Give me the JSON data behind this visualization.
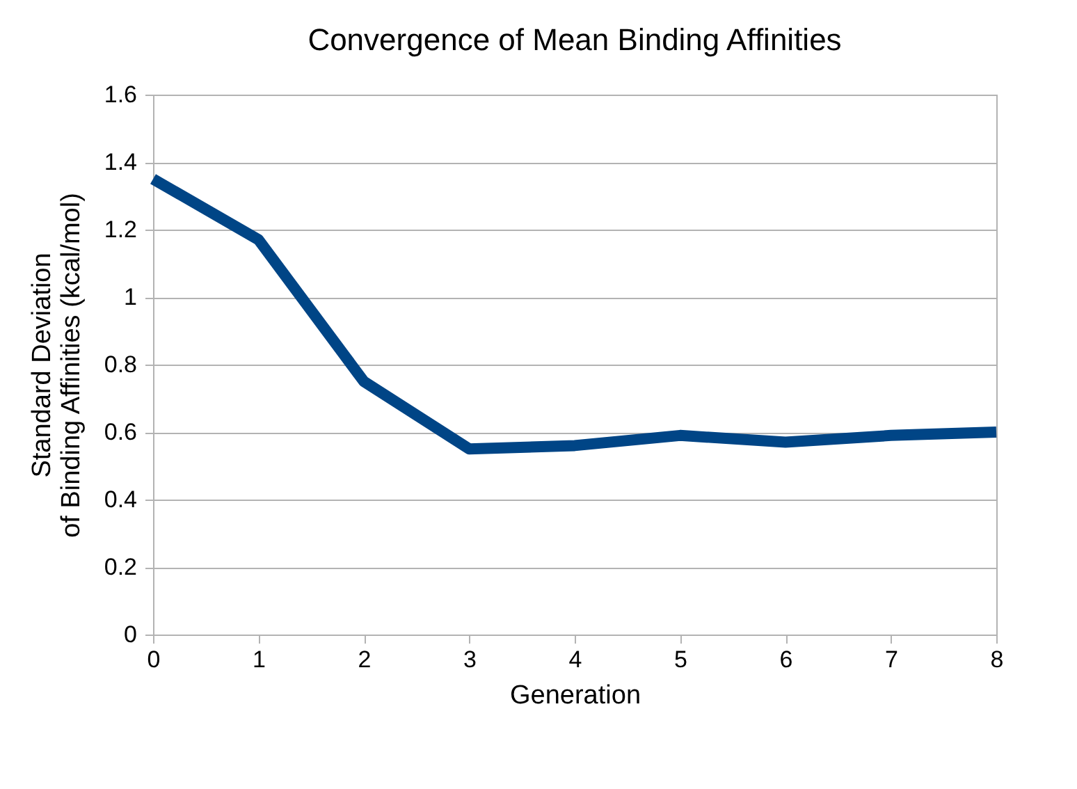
{
  "chart_data": {
    "type": "line",
    "title": "Convergence of Mean Binding Affinities",
    "xlabel": "Generation",
    "ylabel": "Standard Deviation\nof Binding Affinities (kcal/mol)",
    "x": [
      0,
      1,
      2,
      3,
      4,
      5,
      6,
      7,
      8
    ],
    "series": [
      {
        "color": "#004586",
        "values": [
          1.35,
          1.17,
          0.75,
          0.55,
          0.56,
          0.59,
          0.57,
          0.59,
          0.6
        ]
      }
    ],
    "xlim": [
      0,
      8
    ],
    "xticks": [
      0,
      1,
      2,
      3,
      4,
      5,
      6,
      7,
      8
    ],
    "ylim": [
      0,
      1.6
    ],
    "yticks": [
      0,
      0.2,
      0.4,
      0.6,
      0.8,
      1,
      1.2,
      1.4,
      1.6
    ],
    "grid": "y",
    "legend": false,
    "marker": "none",
    "line_style": "solid"
  }
}
